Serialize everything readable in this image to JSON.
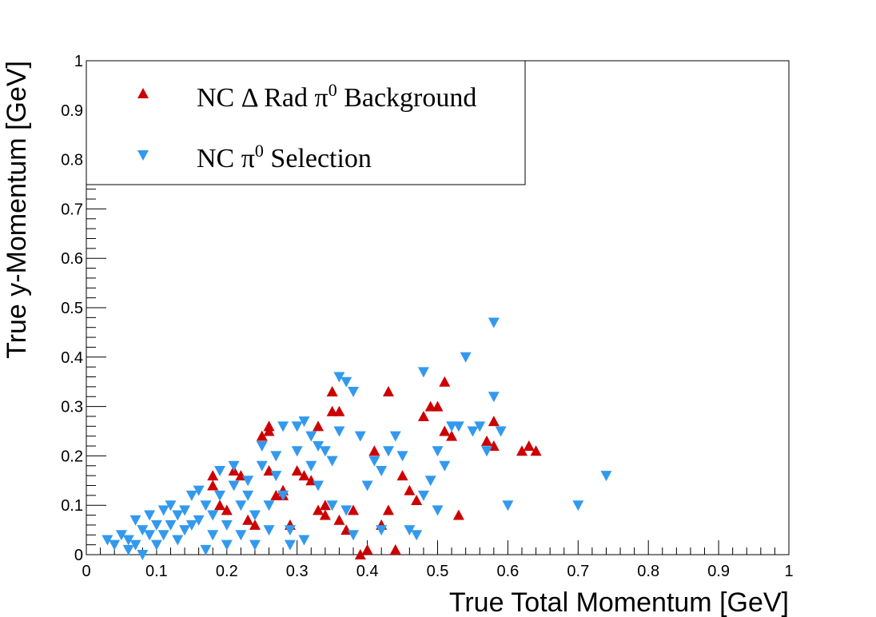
{
  "chart_data": {
    "type": "scatter",
    "title": "",
    "xlabel": "True Total Momentum [GeV]",
    "ylabel": "True y-Momentum [GeV]",
    "xlim": [
      0,
      1
    ],
    "ylim": [
      0,
      1
    ],
    "x_ticks": [
      "0",
      "0.1",
      "0.2",
      "0.3",
      "0.4",
      "0.5",
      "0.6",
      "0.7",
      "0.8",
      "0.9",
      "1"
    ],
    "y_ticks": [
      "0",
      "0.1",
      "0.2",
      "0.3",
      "0.4",
      "0.5",
      "0.6",
      "0.7",
      "0.8",
      "0.9",
      "1"
    ],
    "grid": false,
    "legend_position": "top-left",
    "series": [
      {
        "name_prefix": "NC ",
        "name_delta": "Δ",
        "name_mid": " Rad ",
        "name_pi": "π",
        "name_sup": "0",
        "name_suffix": " Background",
        "marker": "triangle-up",
        "color": "#cc0000",
        "points": [
          [
            0.18,
            0.16
          ],
          [
            0.18,
            0.14
          ],
          [
            0.19,
            0.1
          ],
          [
            0.2,
            0.09
          ],
          [
            0.21,
            0.17
          ],
          [
            0.22,
            0.16
          ],
          [
            0.23,
            0.07
          ],
          [
            0.24,
            0.06
          ],
          [
            0.25,
            0.24
          ],
          [
            0.26,
            0.26
          ],
          [
            0.26,
            0.25
          ],
          [
            0.26,
            0.17
          ],
          [
            0.27,
            0.12
          ],
          [
            0.28,
            0.13
          ],
          [
            0.28,
            0.12
          ],
          [
            0.29,
            0.06
          ],
          [
            0.3,
            0.17
          ],
          [
            0.31,
            0.16
          ],
          [
            0.32,
            0.15
          ],
          [
            0.33,
            0.09
          ],
          [
            0.33,
            0.26
          ],
          [
            0.34,
            0.1
          ],
          [
            0.34,
            0.08
          ],
          [
            0.35,
            0.33
          ],
          [
            0.35,
            0.29
          ],
          [
            0.36,
            0.29
          ],
          [
            0.36,
            0.07
          ],
          [
            0.37,
            0.05
          ],
          [
            0.38,
            0.09
          ],
          [
            0.39,
            0.0
          ],
          [
            0.4,
            0.01
          ],
          [
            0.41,
            0.21
          ],
          [
            0.42,
            0.06
          ],
          [
            0.43,
            0.33
          ],
          [
            0.43,
            0.09
          ],
          [
            0.44,
            0.01
          ],
          [
            0.45,
            0.16
          ],
          [
            0.46,
            0.13
          ],
          [
            0.47,
            0.11
          ],
          [
            0.48,
            0.28
          ],
          [
            0.49,
            0.3
          ],
          [
            0.5,
            0.3
          ],
          [
            0.51,
            0.35
          ],
          [
            0.51,
            0.25
          ],
          [
            0.52,
            0.24
          ],
          [
            0.53,
            0.08
          ],
          [
            0.57,
            0.23
          ],
          [
            0.58,
            0.27
          ],
          [
            0.58,
            0.22
          ],
          [
            0.62,
            0.21
          ],
          [
            0.63,
            0.22
          ],
          [
            0.64,
            0.21
          ]
        ]
      },
      {
        "name_prefix": "NC ",
        "name_pi": "π",
        "name_sup": "0",
        "name_suffix": " Selection",
        "marker": "triangle-down",
        "color": "#3399ee",
        "points": [
          [
            0.03,
            0.03
          ],
          [
            0.04,
            0.02
          ],
          [
            0.05,
            0.04
          ],
          [
            0.06,
            0.03
          ],
          [
            0.06,
            0.01
          ],
          [
            0.07,
            0.07
          ],
          [
            0.07,
            0.02
          ],
          [
            0.08,
            0.05
          ],
          [
            0.08,
            0.0
          ],
          [
            0.09,
            0.04
          ],
          [
            0.09,
            0.08
          ],
          [
            0.1,
            0.02
          ],
          [
            0.1,
            0.06
          ],
          [
            0.11,
            0.04
          ],
          [
            0.11,
            0.09
          ],
          [
            0.12,
            0.06
          ],
          [
            0.12,
            0.1
          ],
          [
            0.13,
            0.03
          ],
          [
            0.13,
            0.08
          ],
          [
            0.14,
            0.09
          ],
          [
            0.14,
            0.05
          ],
          [
            0.15,
            0.06
          ],
          [
            0.15,
            0.12
          ],
          [
            0.16,
            0.07
          ],
          [
            0.16,
            0.13
          ],
          [
            0.17,
            0.1
          ],
          [
            0.17,
            0.01
          ],
          [
            0.18,
            0.08
          ],
          [
            0.18,
            0.04
          ],
          [
            0.19,
            0.12
          ],
          [
            0.19,
            0.17
          ],
          [
            0.2,
            0.06
          ],
          [
            0.2,
            0.02
          ],
          [
            0.21,
            0.14
          ],
          [
            0.21,
            0.18
          ],
          [
            0.22,
            0.1
          ],
          [
            0.22,
            0.04
          ],
          [
            0.23,
            0.12
          ],
          [
            0.23,
            0.15
          ],
          [
            0.24,
            0.08
          ],
          [
            0.24,
            0.02
          ],
          [
            0.25,
            0.22
          ],
          [
            0.25,
            0.18
          ],
          [
            0.26,
            0.1
          ],
          [
            0.26,
            0.05
          ],
          [
            0.27,
            0.16
          ],
          [
            0.27,
            0.2
          ],
          [
            0.28,
            0.26
          ],
          [
            0.28,
            0.12
          ],
          [
            0.29,
            0.05
          ],
          [
            0.29,
            0.02
          ],
          [
            0.3,
            0.26
          ],
          [
            0.3,
            0.21
          ],
          [
            0.31,
            0.27
          ],
          [
            0.31,
            0.03
          ],
          [
            0.32,
            0.24
          ],
          [
            0.32,
            0.18
          ],
          [
            0.33,
            0.22
          ],
          [
            0.33,
            0.14
          ],
          [
            0.34,
            0.21
          ],
          [
            0.35,
            0.19
          ],
          [
            0.35,
            0.1
          ],
          [
            0.36,
            0.36
          ],
          [
            0.36,
            0.25
          ],
          [
            0.37,
            0.35
          ],
          [
            0.37,
            0.09
          ],
          [
            0.38,
            0.33
          ],
          [
            0.38,
            0.04
          ],
          [
            0.39,
            0.24
          ],
          [
            0.4,
            0.14
          ],
          [
            0.41,
            0.19
          ],
          [
            0.42,
            0.17
          ],
          [
            0.42,
            0.05
          ],
          [
            0.43,
            0.21
          ],
          [
            0.44,
            0.24
          ],
          [
            0.45,
            0.2
          ],
          [
            0.46,
            0.05
          ],
          [
            0.47,
            0.04
          ],
          [
            0.48,
            0.37
          ],
          [
            0.48,
            0.12
          ],
          [
            0.49,
            0.15
          ],
          [
            0.5,
            0.21
          ],
          [
            0.5,
            0.09
          ],
          [
            0.51,
            0.18
          ],
          [
            0.52,
            0.26
          ],
          [
            0.53,
            0.26
          ],
          [
            0.54,
            0.4
          ],
          [
            0.55,
            0.25
          ],
          [
            0.56,
            0.26
          ],
          [
            0.57,
            0.21
          ],
          [
            0.58,
            0.47
          ],
          [
            0.58,
            0.32
          ],
          [
            0.59,
            0.25
          ],
          [
            0.6,
            0.1
          ],
          [
            0.7,
            0.1
          ],
          [
            0.74,
            0.16
          ]
        ]
      }
    ]
  }
}
